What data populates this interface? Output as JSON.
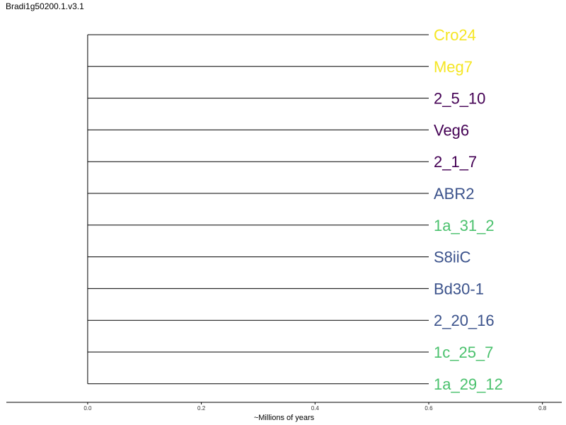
{
  "title": "Bradi1g50200.1.v3.1",
  "axis": {
    "label": "~Millions of years",
    "ticks": [
      0.0,
      0.2,
      0.4,
      0.6,
      0.8
    ],
    "tick_labels": [
      "0.0",
      "0.2",
      "0.4",
      "0.6",
      "0.8"
    ],
    "range": [
      -0.143,
      0.834
    ]
  },
  "tree": {
    "root_x": 0.0,
    "leaves": [
      {
        "name": "Cro24",
        "x": 0.6,
        "color": "#f5e624"
      },
      {
        "name": "Meg7",
        "x": 0.6,
        "color": "#f5e624"
      },
      {
        "name": "2_5_10",
        "x": 0.6,
        "color": "#440154"
      },
      {
        "name": "Veg6",
        "x": 0.6,
        "color": "#440154"
      },
      {
        "name": "2_1_7",
        "x": 0.6,
        "color": "#440154"
      },
      {
        "name": "ABR2",
        "x": 0.6,
        "color": "#3b528b"
      },
      {
        "name": "1a_31_2",
        "x": 0.6,
        "color": "#4ac16d"
      },
      {
        "name": "S8iiC",
        "x": 0.6,
        "color": "#3b528b"
      },
      {
        "name": "Bd30-1",
        "x": 0.6,
        "color": "#3b528b"
      },
      {
        "name": "2_20_16",
        "x": 0.6,
        "color": "#3b528b"
      },
      {
        "name": "1c_25_7",
        "x": 0.6,
        "color": "#4ac16d"
      },
      {
        "name": "1a_29_12",
        "x": 0.6,
        "color": "#4ac16d"
      }
    ]
  }
}
